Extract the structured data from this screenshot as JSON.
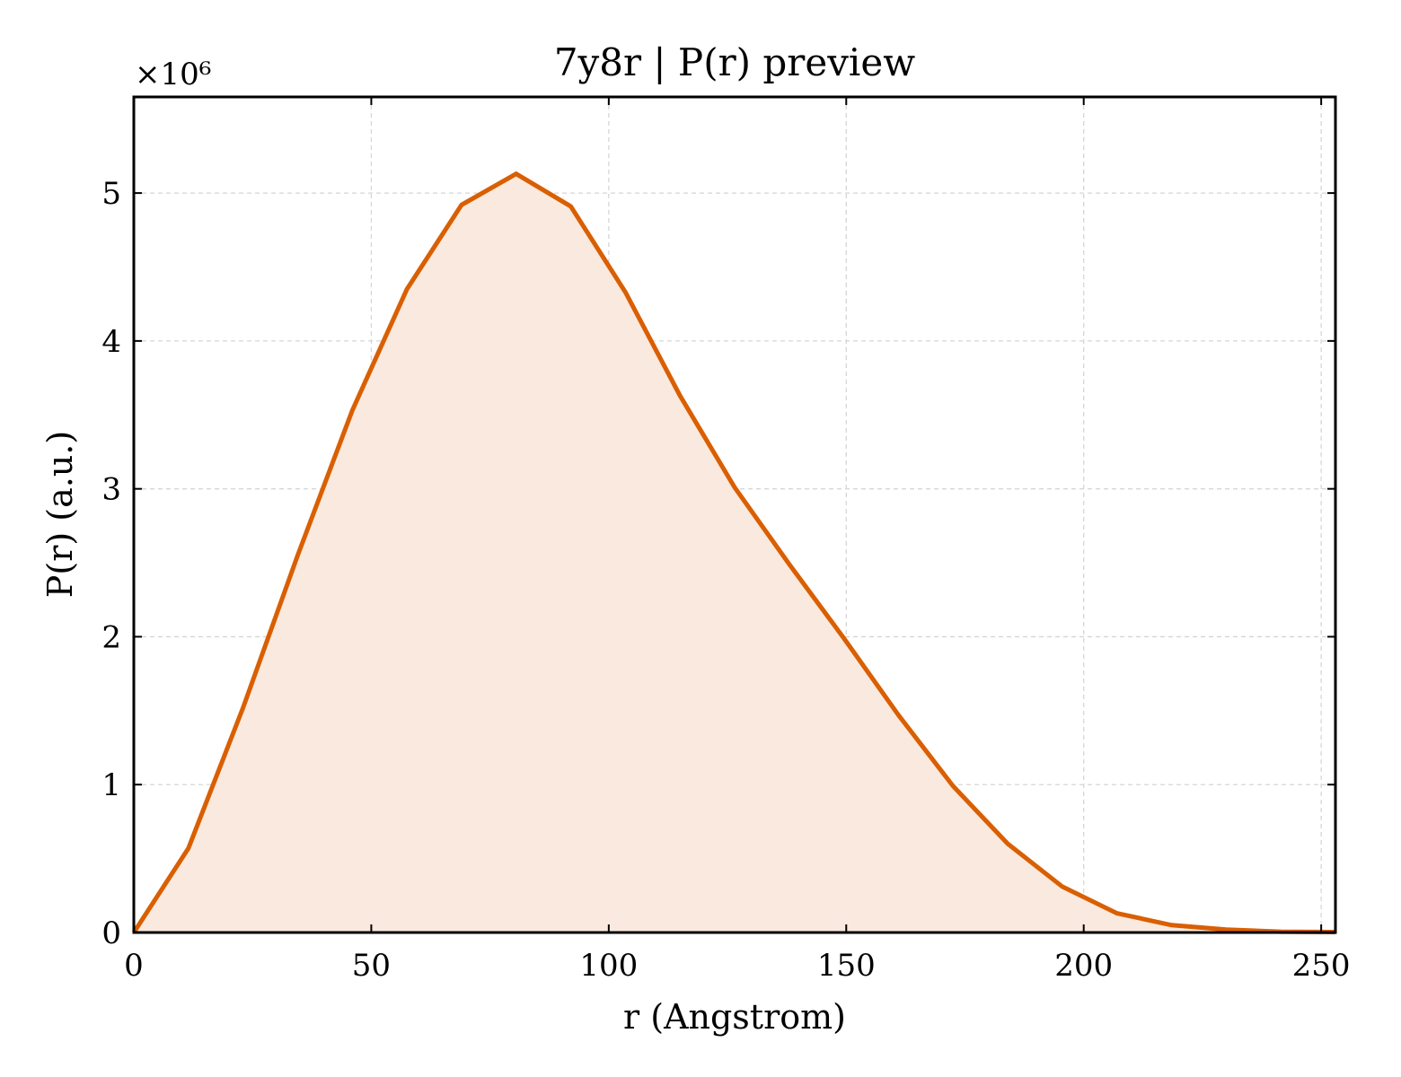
{
  "chart_data": {
    "type": "area",
    "title": "7y8r | P(r) preview",
    "xlabel": "r (Angstrom)",
    "ylabel": "P(r) (a.u.)",
    "y_multiplier_label": "×10⁶",
    "xlim": [
      0,
      253
    ],
    "ylim": [
      0,
      5.65
    ],
    "x_ticks": [
      0,
      50,
      100,
      150,
      200,
      250
    ],
    "y_ticks": [
      0,
      1,
      2,
      3,
      4,
      5
    ],
    "grid": true,
    "colors": {
      "line": "#d95f02",
      "fill": "#fae9de"
    },
    "series": [
      {
        "x": [
          0,
          11.5,
          23,
          34.5,
          46,
          57.5,
          69,
          80.5,
          92,
          103.5,
          115,
          126.5,
          138,
          149.5,
          161,
          172.5,
          184,
          195.5,
          207,
          218.5,
          230,
          241.5,
          253
        ],
        "y": [
          0,
          0.57,
          1.52,
          2.55,
          3.53,
          4.35,
          4.92,
          5.13,
          4.91,
          4.33,
          3.63,
          3.01,
          2.49,
          1.99,
          1.47,
          0.99,
          0.6,
          0.31,
          0.13,
          0.05,
          0.02,
          0.005,
          0.003
        ]
      }
    ]
  }
}
